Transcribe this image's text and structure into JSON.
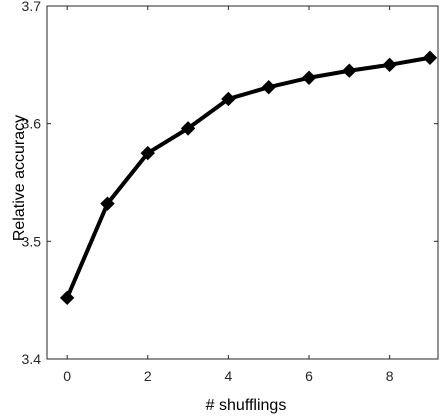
{
  "chart_data": {
    "type": "line",
    "title": "",
    "xlabel": "# shufflings",
    "ylabel": "Relative accuracy",
    "xlim": [
      -0.5,
      9.2
    ],
    "ylim": [
      3.4,
      3.7
    ],
    "x_ticks": [
      0,
      2,
      4,
      6,
      8
    ],
    "y_ticks": [
      3.4,
      3.5,
      3.6,
      3.7
    ],
    "x_tick_labels": [
      "0",
      "2",
      "4",
      "6",
      "8"
    ],
    "y_tick_labels": [
      "3.4",
      "3.5",
      "3.6",
      "3.7"
    ],
    "grid": false,
    "series": [
      {
        "x": [
          0,
          1,
          2,
          3,
          4,
          5,
          6,
          7,
          8,
          9
        ],
        "values": [
          3.452,
          3.532,
          3.575,
          3.596,
          3.621,
          3.631,
          3.639,
          3.645,
          3.65,
          3.656
        ],
        "color": "#000000",
        "marker": "diamond"
      }
    ]
  }
}
